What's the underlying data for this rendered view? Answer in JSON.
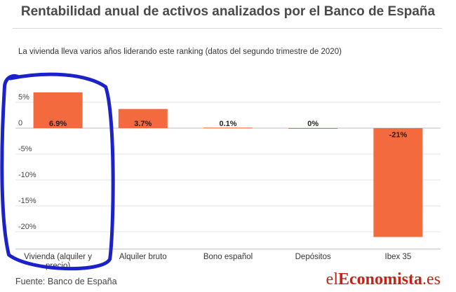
{
  "title": "Rentabilidad anual de activos analizados por el Banco de España",
  "subtitle": "La vivienda lleva varios años liderando este ranking (datos del segundo trimestre de 2020)",
  "source": "Fuente: Banco de España",
  "brand": {
    "prefix": "el",
    "highlight": "Economista",
    "suffix": ".es",
    "color": "#c4231a"
  },
  "chart_data": {
    "type": "bar",
    "title": "Rentabilidad anual de activos analizados por el Banco de España",
    "categories": [
      "Vivienda (alquiler y precio)",
      "Alquiler bruto",
      "Bono español",
      "Depósitos",
      "Ibex 35"
    ],
    "values": [
      6.9,
      3.7,
      0.1,
      0,
      -21
    ],
    "value_labels": [
      "6.9%",
      "3.7%",
      "0.1%",
      "0%",
      "-21%"
    ],
    "y_ticks": [
      5,
      0,
      -5,
      -10,
      -15,
      -20
    ],
    "y_tick_labels": [
      "5%",
      "0",
      "-5%",
      "-10%",
      "-15%",
      "-20%"
    ],
    "ylim": [
      -22,
      9
    ],
    "grid": true,
    "bar_color": "#f26a3d",
    "highlight": {
      "category": "Vivienda (alquiler y precio)",
      "color": "#1a22c8"
    }
  }
}
